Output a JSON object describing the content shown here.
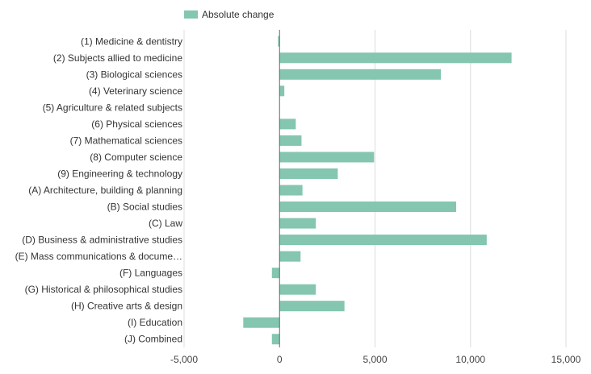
{
  "chart_data": {
    "type": "bar",
    "orientation": "horizontal",
    "categories": [
      "(1) Medicine & dentistry",
      "(2) Subjects allied to medicine",
      "(3) Biological sciences",
      "(4) Veterinary science",
      "(5) Agriculture & related subjects",
      "(6) Physical sciences",
      "(7) Mathematical sciences",
      "(8) Computer science",
      "(9) Engineering & technology",
      "(A) Architecture, building & planning",
      "(B) Social studies",
      "(C) Law",
      "(D) Business & administrative studies",
      "(E) Mass communications & docume…",
      "(F) Languages",
      "(G) Historical & philosophical studies",
      "(H) Creative arts & design",
      "(I) Education",
      "(J) Combined"
    ],
    "series": [
      {
        "name": "Absolute change",
        "color": "#84c6b0",
        "values": [
          -80,
          12150,
          8450,
          250,
          0,
          850,
          1150,
          4950,
          3050,
          1200,
          9250,
          1900,
          10850,
          1100,
          -400,
          1900,
          3400,
          -1900,
          -400
        ]
      }
    ],
    "xlim": [
      -5000,
      15000
    ],
    "xticks": [
      -5000,
      0,
      5000,
      10000,
      15000
    ],
    "xtick_labels": [
      "-5,000",
      "0",
      "5,000",
      "10,000",
      "15,000"
    ],
    "grid": true,
    "legend_position": "top-left"
  }
}
